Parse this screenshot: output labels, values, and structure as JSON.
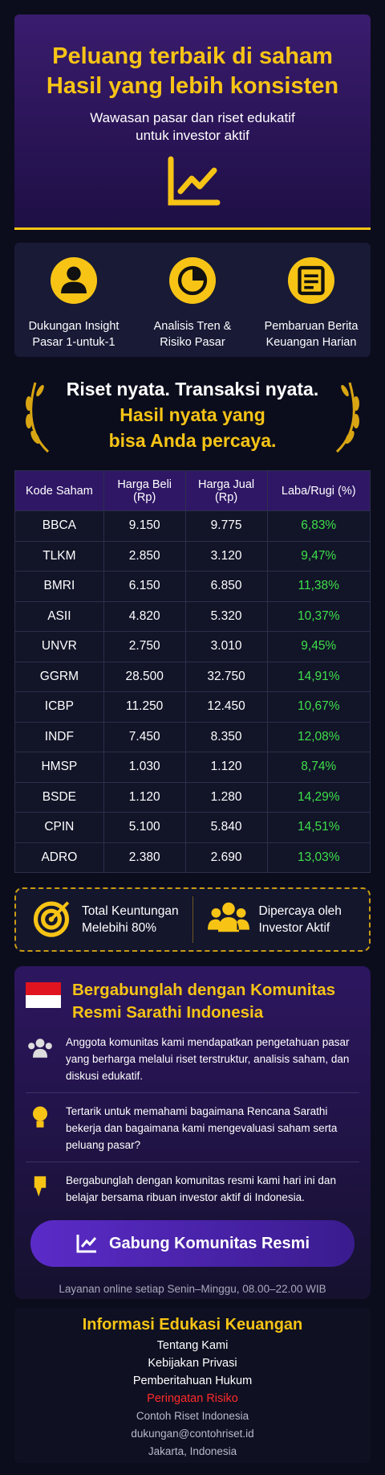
{
  "hero": {
    "title_line1": "Peluang terbaik di saham",
    "title_line2": "Hasil yang lebih konsisten",
    "subtitle_line1": "Wawasan pasar dan riset edukatif",
    "subtitle_line2": "untuk investor aktif"
  },
  "features": [
    {
      "line1": "Dukungan Insight",
      "line2": "Pasar 1-untuk-1"
    },
    {
      "line1": "Analisis Tren &",
      "line2": "Risiko Pasar"
    },
    {
      "line1": "Pembaruan Berita",
      "line2": "Keuangan Harian"
    }
  ],
  "proof": {
    "line1": "Riset nyata. Transaksi nyata.",
    "line2": "Hasil nyata yang",
    "line3": "bisa Anda percaya."
  },
  "table": {
    "headers": [
      "Kode Saham",
      "Harga Beli (Rp)",
      "Harga Jual (Rp)",
      "Laba/Rugi (%)"
    ],
    "rows": [
      [
        "BBCA",
        "9.150",
        "9.775",
        "6,83%"
      ],
      [
        "TLKM",
        "2.850",
        "3.120",
        "9,47%"
      ],
      [
        "BMRI",
        "6.150",
        "6.850",
        "11,38%"
      ],
      [
        "ASII",
        "4.820",
        "5.320",
        "10,37%"
      ],
      [
        "UNVR",
        "2.750",
        "3.010",
        "9,45%"
      ],
      [
        "GGRM",
        "28.500",
        "32.750",
        "14,91%"
      ],
      [
        "ICBP",
        "11.250",
        "12.450",
        "10,67%"
      ],
      [
        "INDF",
        "7.450",
        "8.350",
        "12,08%"
      ],
      [
        "HMSP",
        "1.030",
        "1.120",
        "8,74%"
      ],
      [
        "BSDE",
        "1.120",
        "1.280",
        "14,29%"
      ],
      [
        "CPIN",
        "5.100",
        "5.840",
        "14,51%"
      ],
      [
        "ADRO",
        "2.380",
        "2.690",
        "13,03%"
      ]
    ]
  },
  "stats": [
    {
      "line1": "Total Keuntungan",
      "line2": "Melebihi 80%"
    },
    {
      "line1": "Dipercaya oleh",
      "line2": "Investor Aktif"
    }
  ],
  "community": {
    "title_line1": "Bergabunglah dengan Komunitas",
    "title_line2": "Resmi Sarathi Indonesia",
    "items": [
      "Anggota komunitas kami mendapatkan pengetahuan pasar yang berharga melalui riset terstruktur, analisis saham, dan diskusi edukatif.",
      "Tertarik untuk memahami bagaimana Rencana Sarathi bekerja dan bagaimana kami mengevaluasi saham serta peluang pasar?",
      "Bergabunglah dengan komunitas resmi kami hari ini dan belajar bersama ribuan investor aktif di Indonesia."
    ],
    "button": "Gabung Komunitas Resmi",
    "hours": "Layanan online setiap Senin–Minggu, 08.00–22.00 WIB"
  },
  "footer": {
    "title": "Informasi Edukasi Keuangan",
    "links": [
      "Tentang Kami",
      "Kebijakan Privasi",
      "Pemberitahuan Hukum",
      "Peringatan Risiko"
    ],
    "company": "Contoh Riset Indonesia",
    "email": "dukungan@contohriset.id",
    "address": "Jakarta, Indonesia"
  }
}
